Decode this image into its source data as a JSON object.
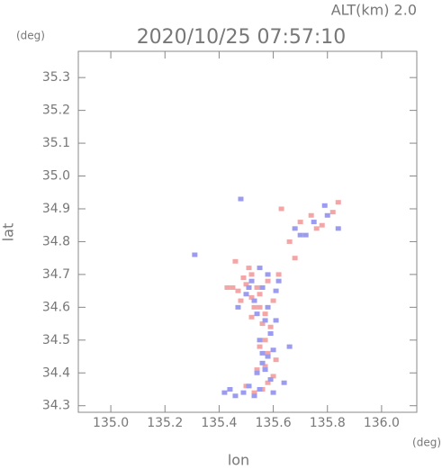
{
  "chart_data": {
    "type": "scatter",
    "title": "2020/10/25 07:57:10",
    "subtitle": "ALT(km) 2.0",
    "x_label": "lon",
    "y_label": "lat",
    "x_unit": "(deg)",
    "y_unit": "(deg)",
    "xlim": [
      134.88,
      136.13
    ],
    "ylim": [
      34.28,
      35.38
    ],
    "xticks": [
      {
        "value": 135,
        "label": "135.0"
      },
      135.2,
      135.4,
      135.6,
      135.8,
      {
        "value": 136,
        "label": "136.0"
      }
    ],
    "yticks": [
      34.3,
      34.4,
      34.5,
      34.6,
      34.7,
      34.8,
      34.9,
      {
        "value": 35,
        "label": "35.0"
      },
      35.1,
      35.2,
      35.3
    ],
    "series": [
      {
        "color": "#f4a6a6",
        "x": [
          135.45,
          135.47,
          135.5,
          135.52,
          135.48,
          135.55,
          135.58,
          135.53,
          135.6,
          135.57,
          135.49,
          135.51,
          135.54,
          135.62,
          135.56,
          135.59,
          135.52,
          135.55,
          135.58,
          135.61,
          135.57,
          135.54,
          135.6,
          135.5,
          135.56,
          135.53,
          135.58,
          135.7,
          135.74,
          135.78,
          135.82,
          135.84,
          135.76,
          135.66,
          135.68,
          135.46,
          135.43,
          135.52,
          135.59,
          135.57,
          135.63,
          135.55
        ],
        "y": [
          34.66,
          34.65,
          34.67,
          34.7,
          34.62,
          34.64,
          34.68,
          34.6,
          34.62,
          34.58,
          34.69,
          34.72,
          34.66,
          34.7,
          34.55,
          34.52,
          34.57,
          34.48,
          34.46,
          34.44,
          34.42,
          34.41,
          34.39,
          34.36,
          34.35,
          34.34,
          34.37,
          34.86,
          34.88,
          34.85,
          34.89,
          34.92,
          34.84,
          34.8,
          34.75,
          34.74,
          34.66,
          34.63,
          34.54,
          34.5,
          34.9,
          34.6
        ]
      },
      {
        "color": "#9b9bf0",
        "x": [
          135.5,
          135.53,
          135.56,
          135.58,
          135.61,
          135.54,
          135.57,
          135.59,
          135.52,
          135.55,
          135.6,
          135.58,
          135.56,
          135.57,
          135.54,
          135.59,
          135.56,
          135.53,
          135.49,
          135.46,
          135.42,
          135.44,
          135.51,
          135.55,
          135.6,
          135.64,
          135.68,
          135.72,
          135.75,
          135.8,
          135.84,
          135.7,
          135.79,
          135.48,
          135.58,
          135.62,
          135.31,
          135.47,
          135.55,
          135.61,
          135.66,
          135.51
        ],
        "y": [
          34.64,
          34.62,
          34.66,
          34.6,
          34.65,
          34.58,
          34.56,
          34.52,
          34.68,
          34.5,
          34.47,
          34.45,
          34.43,
          34.41,
          34.4,
          34.38,
          34.46,
          34.33,
          34.34,
          34.33,
          34.34,
          34.35,
          34.36,
          34.35,
          34.34,
          34.37,
          34.84,
          34.82,
          34.86,
          34.88,
          34.84,
          34.82,
          34.91,
          34.93,
          34.7,
          34.68,
          34.76,
          34.6,
          34.72,
          34.56,
          34.48,
          34.66
        ]
      }
    ]
  }
}
